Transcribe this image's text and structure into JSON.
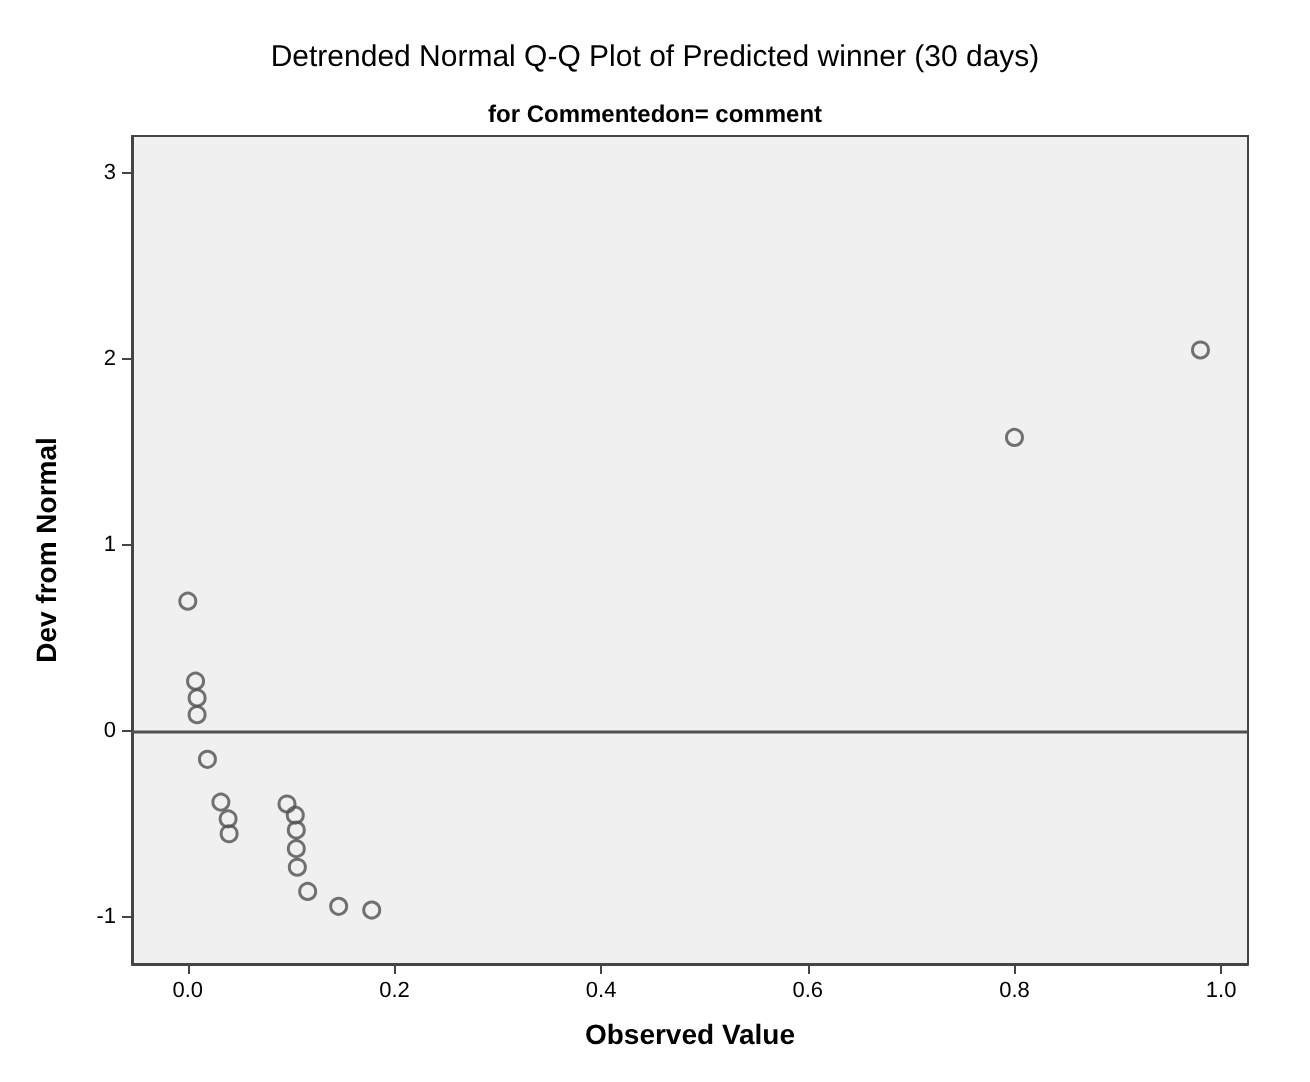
{
  "chart_data": {
    "type": "scatter",
    "title": "Detrended Normal Q-Q Plot of Predicted winner (30 days)",
    "subtitle": "for Commentedon= comment",
    "xlabel": "Observed Value",
    "ylabel": "Dev from Normal",
    "x": [
      0,
      0.0075,
      0.009,
      0.009,
      0.019,
      0.032,
      0.039,
      0.04,
      0.096,
      0.104,
      0.105,
      0.105,
      0.106,
      0.116,
      0.146,
      0.178,
      0.8,
      0.98
    ],
    "series": [
      {
        "color": "#505050",
        "values": [
          0.7,
          0.27,
          0.18,
          0.09,
          -0.15,
          -0.38,
          -0.47,
          -0.55,
          -0.39,
          -0.45,
          -0.53,
          -0.63,
          -0.73,
          -0.86,
          -0.94,
          -0.96,
          1.58,
          2.05
        ]
      }
    ],
    "xlim": [
      -0.054,
      1.026
    ],
    "ylim": [
      -1.25,
      3.2
    ],
    "xticks": [
      {
        "value": 0,
        "label": "0.0"
      },
      {
        "value": 0.2,
        "label": "0.2"
      },
      {
        "value": 0.4,
        "label": "0.4"
      },
      {
        "value": 0.6,
        "label": "0.6"
      },
      {
        "value": 0.8,
        "label": "0.8"
      },
      {
        "value": 1,
        "label": "1.0"
      }
    ],
    "yticks": [
      -1,
      0,
      1,
      2,
      3
    ],
    "ref_lines": [
      {
        "axis": "y",
        "value": 0,
        "color": "#505050"
      }
    ],
    "grid": false,
    "marker": "circle"
  }
}
